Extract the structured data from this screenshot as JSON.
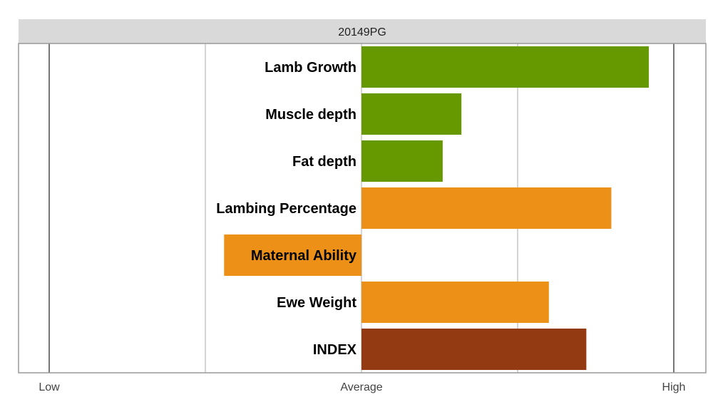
{
  "chart_data": {
    "type": "bar",
    "orientation": "horizontal",
    "title": "20149PG",
    "categories": [
      "Lamb Growth",
      "Muscle depth",
      "Fat depth",
      "Lambing Percentage",
      "Maternal Ability",
      "Ewe Weight",
      "INDEX"
    ],
    "values": [
      0.92,
      0.32,
      0.26,
      0.8,
      -0.44,
      0.6,
      0.72
    ],
    "colors": [
      "#669900",
      "#669900",
      "#669900",
      "#EC9018",
      "#EC9018",
      "#EC9018",
      "#943A12"
    ],
    "xlim": [
      -1,
      1
    ],
    "x_ticks": [
      {
        "value": -1,
        "label": "Low"
      },
      {
        "value": 0,
        "label": "Average"
      },
      {
        "value": 1,
        "label": "High"
      }
    ],
    "gridlines": [
      -1,
      -0.5,
      0,
      0.5,
      1
    ],
    "grid": true,
    "legend": "none"
  }
}
